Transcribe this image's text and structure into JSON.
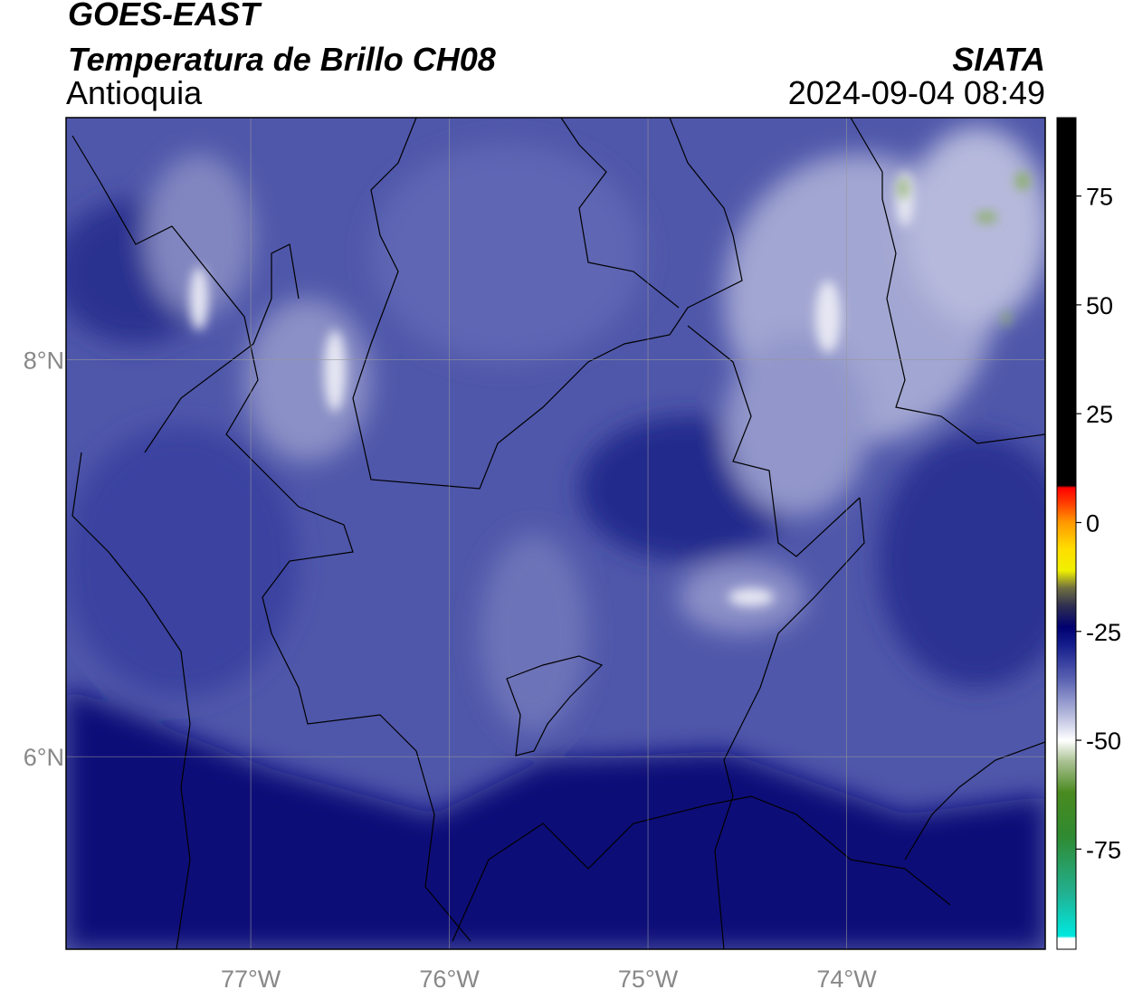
{
  "title": "GOES-EAST",
  "subtitle": "Temperatura de Brillo CH08",
  "region": "Antioquia",
  "source": "SIATA",
  "datetime": "2024-09-04 08:49",
  "map": {
    "xlim": [
      -77.93,
      -73.0
    ],
    "ylim": [
      5.03,
      9.22
    ],
    "xticks": [
      {
        "value": -77,
        "label": "77°W"
      },
      {
        "value": -76,
        "label": "76°W"
      },
      {
        "value": -75,
        "label": "75°W"
      },
      {
        "value": -74,
        "label": "74°W"
      }
    ],
    "yticks": [
      {
        "value": 6,
        "label": "6°N"
      },
      {
        "value": 8,
        "label": "8°N"
      }
    ],
    "grid": true
  },
  "colorbar": {
    "lim": [
      -98,
      93
    ],
    "ticks": [
      -75,
      -50,
      -25,
      0,
      25,
      50,
      75
    ],
    "colormap": [
      {
        "value": -98,
        "color": "#ffffff"
      },
      {
        "value": -95.5,
        "color": "#ffffff"
      },
      {
        "value": -95,
        "color": "#00e8e0"
      },
      {
        "value": -85,
        "color": "#22b090"
      },
      {
        "value": -72,
        "color": "#2f8a30"
      },
      {
        "value": -62,
        "color": "#4a8a20"
      },
      {
        "value": -55,
        "color": "#a8c090"
      },
      {
        "value": -50,
        "color": "#ffffff"
      },
      {
        "value": -44,
        "color": "#b4b8dc"
      },
      {
        "value": -36,
        "color": "#5a62b2"
      },
      {
        "value": -28,
        "color": "#141c8c"
      },
      {
        "value": -24,
        "color": "#000070"
      },
      {
        "value": -19,
        "color": "#303050"
      },
      {
        "value": -15,
        "color": "#707040"
      },
      {
        "value": -11,
        "color": "#f0f000"
      },
      {
        "value": -6,
        "color": "#ffdd00"
      },
      {
        "value": 0,
        "color": "#ff9900"
      },
      {
        "value": 5,
        "color": "#ff3300"
      },
      {
        "value": 8,
        "color": "#ff0000"
      },
      {
        "value": 8.5,
        "color": "#000000"
      },
      {
        "value": 93,
        "color": "#000000"
      }
    ]
  }
}
